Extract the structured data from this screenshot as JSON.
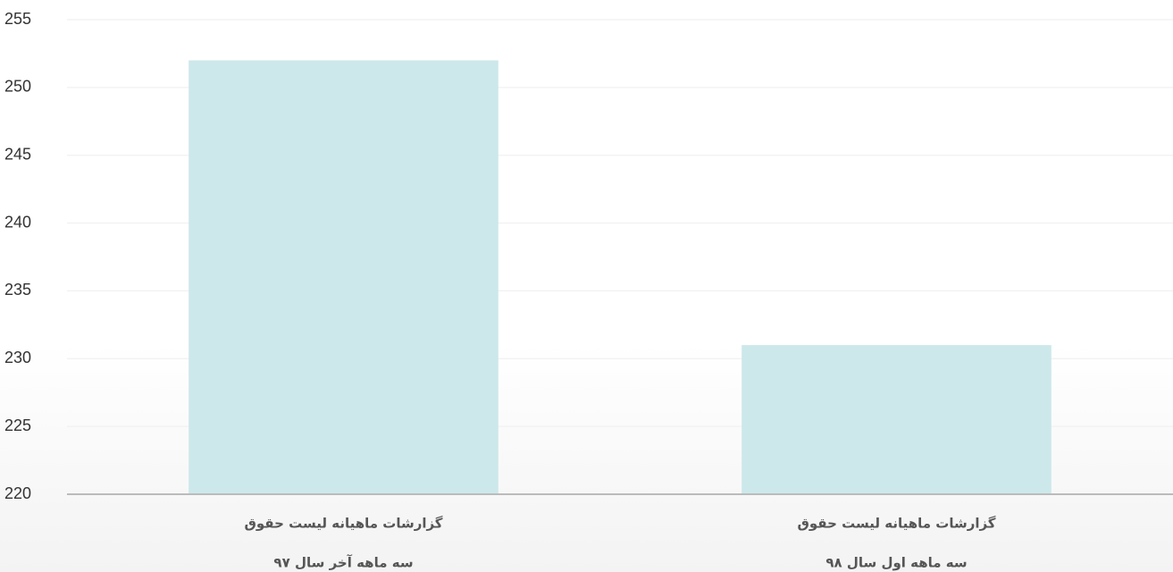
{
  "chart_data": {
    "type": "bar",
    "categories": [
      [
        "گزارشات ماهیانه لیست حقوق",
        "سه ماهه آخر سال ۹۷"
      ],
      [
        "گزارشات ماهیانه لیست حقوق",
        "سه ماهه اول سال ۹۸"
      ]
    ],
    "values": [
      252,
      231
    ],
    "color": "#cde8ea",
    "ylim": [
      220,
      255
    ],
    "yticks": [
      220,
      225,
      230,
      235,
      240,
      245,
      250,
      255
    ],
    "grid": true
  }
}
